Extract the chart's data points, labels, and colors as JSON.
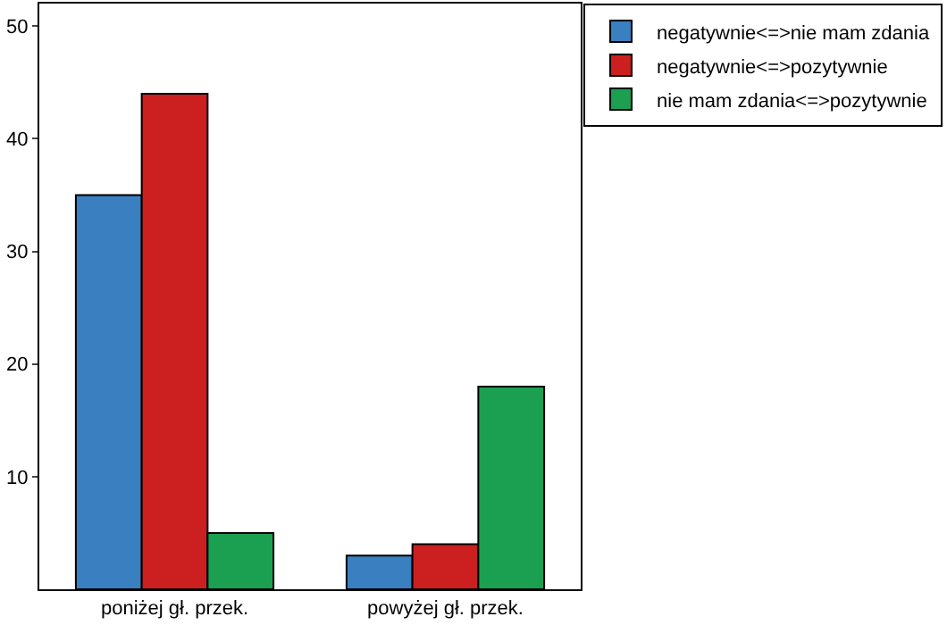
{
  "chart_data": {
    "type": "bar",
    "categories": [
      "poniżej gł. przek.",
      "powyżej gł. przek."
    ],
    "series": [
      {
        "name": "negatywnie<=>nie mam zdania",
        "color": "#3a7fc0",
        "values": [
          35,
          3
        ]
      },
      {
        "name": "negatywnie<=>pozytywnie",
        "color": "#cc1f1f",
        "values": [
          44,
          4
        ]
      },
      {
        "name": "nie mam zdania<=>pozytywnie",
        "color": "#1aa050",
        "values": [
          5,
          18
        ]
      }
    ],
    "ylim": [
      0,
      52
    ],
    "yticks": [
      10,
      20,
      30,
      40,
      50
    ],
    "grid": false,
    "legend": "top right"
  }
}
